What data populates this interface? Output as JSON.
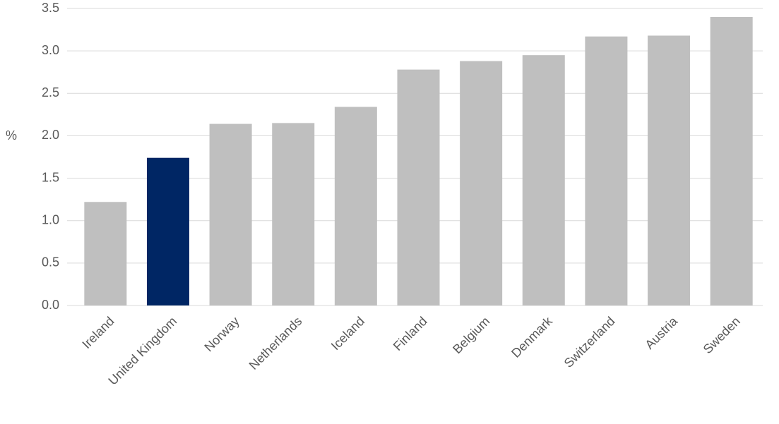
{
  "chart_data": {
    "type": "bar",
    "y_label": "%",
    "categories": [
      "Ireland",
      "United Kingdom",
      "Norway",
      "Netherlands",
      "Iceland",
      "Finland",
      "Belgium",
      "Denmark",
      "Switzerland",
      "Austria",
      "Sweden"
    ],
    "values": [
      1.22,
      1.74,
      2.14,
      2.15,
      2.34,
      2.78,
      2.88,
      2.95,
      3.17,
      3.18,
      3.4
    ],
    "colors": [
      "#bfbfbf",
      "#002664",
      "#bfbfbf",
      "#bfbfbf",
      "#bfbfbf",
      "#bfbfbf",
      "#bfbfbf",
      "#bfbfbf",
      "#bfbfbf",
      "#bfbfbf",
      "#bfbfbf"
    ],
    "ylim": [
      0,
      3.5
    ],
    "yticks": [
      {
        "value": 0,
        "label": "0.0"
      },
      0.5,
      {
        "value": 1,
        "label": "1.0"
      },
      1.5,
      {
        "value": 2,
        "label": "2.0"
      },
      2.5,
      {
        "value": 3,
        "label": "3.0"
      },
      3.5
    ],
    "grid": true
  }
}
